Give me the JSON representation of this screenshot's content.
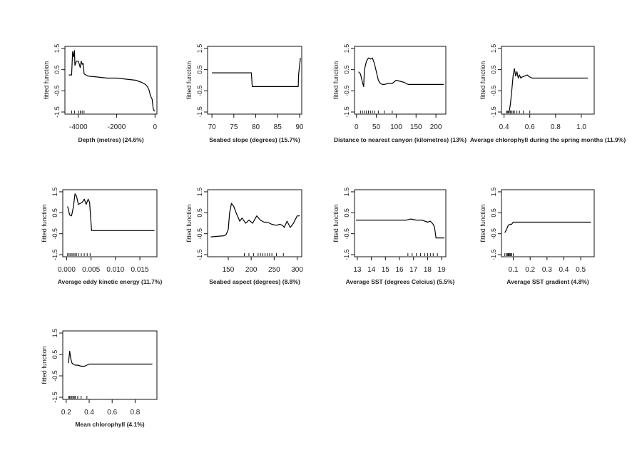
{
  "chart_data": [
    {
      "type": "line",
      "ylabel": "fitted function",
      "caption": "Depth (metres) (24.6%)",
      "xlim": [
        -4700,
        100
      ],
      "ylim": [
        -1.6,
        1.6
      ],
      "xticks": [
        -4000,
        -2000,
        0
      ],
      "xtick_labels": [
        "-4000",
        "-2000",
        "0"
      ],
      "yticks": [
        -1.5,
        -0.5,
        0.5,
        1.5
      ],
      "ytick_labels": [
        "-1.5",
        "-0.5",
        "0.5",
        "1.5"
      ],
      "x": [
        -4500,
        -4350,
        -4300,
        -4250,
        -4200,
        -4180,
        -4100,
        -4000,
        -3900,
        -3850,
        -3800,
        -3750,
        -3700,
        -3600,
        -3500,
        -3000,
        -2500,
        -2000,
        -1500,
        -1000,
        -700,
        -500,
        -400,
        -300,
        -250,
        -200,
        -150,
        -100,
        -50,
        0
      ],
      "y": [
        0.25,
        0.25,
        1.35,
        1.1,
        1.4,
        0.7,
        0.9,
        0.9,
        0.6,
        0.9,
        0.75,
        0.8,
        0.3,
        0.25,
        0.2,
        0.15,
        0.1,
        0.1,
        0.05,
        0.0,
        -0.1,
        -0.2,
        -0.3,
        -0.5,
        -0.7,
        -0.8,
        -0.9,
        -1.3,
        -1.45,
        -1.45
      ],
      "rug": [
        -4350,
        -4200,
        -4000,
        -3900,
        -3800,
        -3700
      ]
    },
    {
      "type": "line",
      "ylabel": "fitted function",
      "caption": "Seabed slope  (degrees) (15.7%)",
      "xlim": [
        69,
        90.5
      ],
      "ylim": [
        -1.6,
        1.6
      ],
      "xticks": [
        70,
        75,
        80,
        85,
        90
      ],
      "xtick_labels": [
        "70",
        "75",
        "80",
        "85",
        "90"
      ],
      "yticks": [
        -1.5,
        -0.5,
        0.5,
        1.5
      ],
      "ytick_labels": [
        "-1.5",
        "-0.5",
        "0.5",
        "1.5"
      ],
      "x": [
        70,
        79,
        79.2,
        89.7,
        89.8,
        90.2
      ],
      "y": [
        0.35,
        0.35,
        -0.3,
        -0.3,
        0.3,
        1.05
      ],
      "rug": []
    },
    {
      "type": "line",
      "ylabel": "fitted function",
      "caption": "Distance to nearest canyon (kilometres) (13%)",
      "xlim": [
        -5,
        225
      ],
      "ylim": [
        -1.6,
        1.6
      ],
      "xticks": [
        0,
        50,
        100,
        150,
        200
      ],
      "xtick_labels": [
        "0",
        "50",
        "100",
        "150",
        "200"
      ],
      "yticks": [
        -1.5,
        -0.5,
        0.5,
        1.5
      ],
      "ytick_labels": [
        "-1.5",
        "-0.5",
        "0.5",
        "1.5"
      ],
      "x": [
        5,
        10,
        15,
        18,
        20,
        25,
        30,
        35,
        40,
        45,
        50,
        55,
        60,
        65,
        70,
        80,
        90,
        100,
        110,
        120,
        125,
        130,
        150,
        180,
        200,
        220
      ],
      "y": [
        0.4,
        0.3,
        -0.1,
        -0.3,
        0.5,
        0.9,
        1.05,
        1.0,
        1.05,
        0.8,
        0.4,
        0.0,
        -0.15,
        -0.2,
        -0.2,
        -0.15,
        -0.15,
        0.0,
        -0.05,
        -0.1,
        -0.15,
        -0.2,
        -0.2,
        -0.2,
        -0.2,
        -0.2
      ],
      "rug": [
        10,
        15,
        20,
        25,
        30,
        35,
        40,
        45,
        55,
        70,
        90
      ]
    },
    {
      "type": "line",
      "ylabel": "fitted function",
      "caption": "Average chlorophyll during the spring months (11.9%)",
      "xlim": [
        0.38,
        1.1
      ],
      "ylim": [
        -1.6,
        1.6
      ],
      "xticks": [
        0.4,
        0.6,
        0.8,
        1.0
      ],
      "xtick_labels": [
        "0.4",
        "0.6",
        "0.8",
        "1.0"
      ],
      "yticks": [
        -1.5,
        -0.5,
        0.5,
        1.5
      ],
      "ytick_labels": [
        "-1.5",
        "-0.5",
        "0.5",
        "1.5"
      ],
      "x": [
        0.42,
        0.44,
        0.45,
        0.46,
        0.47,
        0.48,
        0.49,
        0.5,
        0.51,
        0.52,
        0.53,
        0.54,
        0.56,
        0.58,
        0.6,
        0.62,
        0.65,
        0.8,
        1.05
      ],
      "y": [
        -1.5,
        -1.5,
        -1.1,
        -0.5,
        0.2,
        0.55,
        0.2,
        0.4,
        0.1,
        0.25,
        0.1,
        0.15,
        0.2,
        0.25,
        0.15,
        0.1,
        0.1,
        0.1,
        0.1
      ],
      "rug": [
        0.42,
        0.43,
        0.44,
        0.45,
        0.46,
        0.47,
        0.48,
        0.5,
        0.52,
        0.55,
        0.6
      ]
    },
    {
      "type": "line",
      "ylabel": "fitted function",
      "caption": "Average eddy kinetic energy (11.7%)",
      "xlim": [
        -0.0008,
        0.0185
      ],
      "ylim": [
        -1.6,
        1.6
      ],
      "xticks": [
        0.0,
        0.005,
        0.01,
        0.015
      ],
      "xtick_labels": [
        "0.000",
        "0.005",
        "0.010",
        "0.015"
      ],
      "yticks": [
        -1.5,
        -0.5,
        0.5,
        1.5
      ],
      "ytick_labels": [
        "-1.5",
        "-0.5",
        "0.5",
        "1.5"
      ],
      "x": [
        0.0002,
        0.0006,
        0.001,
        0.0014,
        0.0017,
        0.002,
        0.0024,
        0.0028,
        0.0032,
        0.0036,
        0.004,
        0.0044,
        0.0047,
        0.0049,
        0.0051,
        0.006,
        0.01,
        0.015,
        0.018
      ],
      "y": [
        0.8,
        0.4,
        0.35,
        0.8,
        1.4,
        1.3,
        0.9,
        0.95,
        1.0,
        1.15,
        0.9,
        1.15,
        1.0,
        0.3,
        -0.35,
        -0.35,
        -0.35,
        -0.35,
        -0.35
      ],
      "rug": [
        0.0002,
        0.0005,
        0.0008,
        0.0011,
        0.0014,
        0.0017,
        0.002,
        0.0024,
        0.003,
        0.0036,
        0.0042,
        0.0048
      ]
    },
    {
      "type": "line",
      "ylabel": "fitted function",
      "caption": "Seabed aspect (degrees) (8.8%)",
      "xlim": [
        105,
        310
      ],
      "ylim": [
        -1.6,
        1.6
      ],
      "xticks": [
        150,
        200,
        250,
        300
      ],
      "xtick_labels": [
        "150",
        "200",
        "250",
        "300"
      ],
      "yticks": [
        -1.5,
        -0.5,
        0.5,
        1.5
      ],
      "ytick_labels": [
        "-1.5",
        "-0.5",
        "0.5",
        "1.5"
      ],
      "x": [
        112,
        140,
        145,
        150,
        153,
        157,
        162,
        168,
        175,
        180,
        188,
        195,
        203,
        212,
        220,
        228,
        235,
        245,
        255,
        262,
        268,
        272,
        278,
        285,
        292,
        300,
        306
      ],
      "y": [
        -0.65,
        -0.6,
        -0.55,
        -0.3,
        0.5,
        0.95,
        0.8,
        0.45,
        0.1,
        0.25,
        0.0,
        0.15,
        0.0,
        0.35,
        0.15,
        0.05,
        0.05,
        -0.05,
        -0.1,
        -0.05,
        -0.1,
        -0.2,
        0.1,
        -0.2,
        0.0,
        0.35,
        0.35
      ],
      "rug": [
        185,
        195,
        205,
        215,
        220,
        225,
        230,
        235,
        240,
        245,
        255,
        270
      ]
    },
    {
      "type": "line",
      "ylabel": "fitted function",
      "caption": "Average SST  (degrees Celcius) (5.5%)",
      "xlim": [
        12.8,
        19.3
      ],
      "ylim": [
        -1.6,
        1.6
      ],
      "xticks": [
        13,
        14,
        15,
        16,
        17,
        18,
        19
      ],
      "xtick_labels": [
        "13",
        "14",
        "15",
        "16",
        "17",
        "18",
        "19"
      ],
      "yticks": [
        -1.5,
        -0.5,
        0.5,
        1.5
      ],
      "ytick_labels": [
        "-1.5",
        "-0.5",
        "0.5",
        "1.5"
      ],
      "x": [
        12.9,
        16.5,
        16.8,
        17.2,
        17.6,
        18.0,
        18.2,
        18.4,
        18.5,
        18.6,
        18.8,
        19.2
      ],
      "y": [
        0.15,
        0.15,
        0.2,
        0.15,
        0.15,
        0.05,
        0.1,
        -0.05,
        -0.2,
        -0.7,
        -0.7,
        -0.7
      ],
      "rug": [
        16.6,
        16.9,
        17.2,
        17.5,
        17.8,
        18.0,
        18.2,
        18.4,
        18.7
      ]
    },
    {
      "type": "line",
      "ylabel": "fitted function",
      "caption": "Average SST gradient (4.8%)",
      "xlim": [
        0.03,
        0.58
      ],
      "ylim": [
        -1.6,
        1.6
      ],
      "xticks": [
        0.1,
        0.2,
        0.3,
        0.4,
        0.5
      ],
      "xtick_labels": [
        "0.1",
        "0.2",
        "0.3",
        "0.4",
        "0.5"
      ],
      "yticks": [
        -1.5,
        -0.5,
        0.5,
        1.5
      ],
      "ytick_labels": [
        "-1.5",
        "-0.5",
        "0.5",
        "1.5"
      ],
      "x": [
        0.05,
        0.06,
        0.07,
        0.08,
        0.09,
        0.1,
        0.11,
        0.2,
        0.4,
        0.56
      ],
      "y": [
        -0.45,
        -0.3,
        -0.1,
        -0.05,
        -0.05,
        0.05,
        0.05,
        0.05,
        0.05,
        0.05
      ],
      "rug": [
        0.05,
        0.06,
        0.065,
        0.07,
        0.075,
        0.08,
        0.085,
        0.09,
        0.1
      ]
    },
    {
      "type": "line",
      "ylabel": "fitted function",
      "caption": "Mean chlorophyll (4.1%)",
      "xlim": [
        0.17,
        0.99
      ],
      "ylim": [
        -1.6,
        1.6
      ],
      "xticks": [
        0.2,
        0.4,
        0.6,
        0.8
      ],
      "xtick_labels": [
        "0.2",
        "0.4",
        "0.6",
        "0.8"
      ],
      "yticks": [
        -1.5,
        -0.5,
        0.5,
        1.5
      ],
      "ytick_labels": [
        "-1.5",
        "-0.5",
        "0.5",
        "1.5"
      ],
      "x": [
        0.22,
        0.23,
        0.24,
        0.25,
        0.26,
        0.28,
        0.3,
        0.33,
        0.36,
        0.38,
        0.4,
        0.42,
        0.5,
        0.7,
        0.95
      ],
      "y": [
        0.1,
        0.65,
        0.3,
        0.1,
        0.05,
        0.0,
        0.0,
        -0.05,
        -0.05,
        0.0,
        0.05,
        0.05,
        0.05,
        0.05,
        0.05
      ],
      "rug": [
        0.22,
        0.23,
        0.24,
        0.25,
        0.26,
        0.27,
        0.28,
        0.3,
        0.33,
        0.38
      ]
    }
  ]
}
